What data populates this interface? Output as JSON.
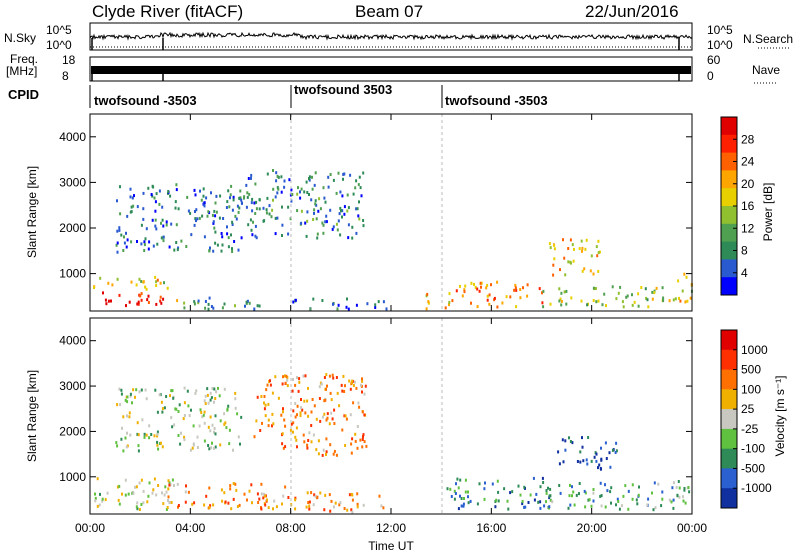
{
  "header": {
    "station": "Clyde River (fitACF)",
    "beam": "Beam 07",
    "date": "22/Jun/2016"
  },
  "meta_panels": {
    "nsky_label": "N.Sky",
    "nsearch_label": "N.Search",
    "freq_label": "Freq.",
    "freq_unit": "[MHz]",
    "nave_label": "Nave",
    "cpid_label": "CPID",
    "nsky_ticks": [
      "10^5",
      "10^0"
    ],
    "freq_ticks": [
      "18",
      "8"
    ],
    "nave_ticks": [
      "60",
      "0"
    ]
  },
  "cpid_segments": [
    {
      "label": "twofsound -3503",
      "start_hour": 0,
      "end_hour": 8
    },
    {
      "label": "twofsound 3503",
      "start_hour": 8,
      "end_hour": 14
    },
    {
      "label": "twofsound -3503",
      "start_hour": 14,
      "end_hour": 24
    }
  ],
  "chart_data": [
    {
      "type": "heatmap",
      "quantity": "Power",
      "ylabel": "Slant Range [km]",
      "xlabel": "",
      "x_ticks": [
        "00:00",
        "04:00",
        "08:00",
        "12:00",
        "16:00",
        "20:00",
        "00:00"
      ],
      "y_ticks": [
        1000,
        2000,
        3000,
        4000
      ],
      "xlim_hours": [
        0,
        24
      ],
      "ylim_km": [
        180,
        4500
      ],
      "colorbar_label": "Power [dB]",
      "colorbar_ticks": [
        4,
        8,
        12,
        16,
        20,
        24,
        28
      ],
      "colorbar_colors": [
        "#0000ff",
        "#2a5ad0",
        "#2e8b57",
        "#4fa050",
        "#90c030",
        "#e8d000",
        "#ffa500",
        "#ff6000",
        "#ff2000",
        "#e00000"
      ],
      "scatter_regions": [
        {
          "t0": 0.1,
          "t1": 2.3,
          "r0": 300,
          "r1": 650,
          "level": 0.92
        },
        {
          "t0": 2.3,
          "t1": 3.5,
          "r0": 320,
          "r1": 600,
          "level": 0.85
        },
        {
          "t0": 0.1,
          "t1": 3.2,
          "r0": 650,
          "r1": 950,
          "level": 0.55
        },
        {
          "t0": 3.2,
          "t1": 7.5,
          "r0": 250,
          "r1": 500,
          "level": 0.25
        },
        {
          "t0": 1.0,
          "t1": 6.0,
          "r0": 1500,
          "r1": 3000,
          "level": 0.2
        },
        {
          "t0": 6.0,
          "t1": 11.0,
          "r0": 1800,
          "r1": 3300,
          "level": 0.25
        },
        {
          "t0": 8.0,
          "t1": 12.0,
          "r0": 250,
          "r1": 500,
          "level": 0.2
        },
        {
          "t0": 13.2,
          "t1": 14.5,
          "r0": 250,
          "r1": 600,
          "level": 0.6
        },
        {
          "t0": 14.5,
          "t1": 18.0,
          "r0": 300,
          "r1": 850,
          "level": 0.7
        },
        {
          "t0": 18.0,
          "t1": 23.5,
          "r0": 300,
          "r1": 750,
          "level": 0.45
        },
        {
          "t0": 18.2,
          "t1": 20.3,
          "r0": 1000,
          "r1": 1800,
          "level": 0.6
        },
        {
          "t0": 23.2,
          "t1": 24.0,
          "r0": 400,
          "r1": 1100,
          "level": 0.55
        }
      ]
    },
    {
      "type": "heatmap",
      "quantity": "Velocity",
      "ylabel": "Slant Range [km]",
      "xlabel": "Time UT",
      "x_ticks": [
        "00:00",
        "04:00",
        "08:00",
        "12:00",
        "16:00",
        "20:00",
        "00:00"
      ],
      "y_ticks": [
        1000,
        2000,
        3000,
        4000
      ],
      "xlim_hours": [
        0,
        24
      ],
      "ylim_km": [
        180,
        4500
      ],
      "colorbar_label": "Velocity [m s⁻¹]",
      "colorbar_ticks": [
        1000,
        500,
        100,
        25,
        -25,
        -100,
        -500,
        -1000
      ],
      "colorbar_colors": [
        "#1030a0",
        "#2a60d0",
        "#2e8b57",
        "#60c040",
        "#c8c8c0",
        "#f0b000",
        "#ff7000",
        "#ff3000",
        "#e00000"
      ],
      "scatter_regions": [
        {
          "t0": 0.1,
          "t1": 3.5,
          "r0": 300,
          "r1": 1000,
          "level": 0.5
        },
        {
          "t0": 1.0,
          "t1": 6.0,
          "r0": 1600,
          "r1": 3000,
          "level": 0.45
        },
        {
          "t0": 6.5,
          "t1": 11.0,
          "r0": 1500,
          "r1": 3300,
          "level": 0.7
        },
        {
          "t0": 3.0,
          "t1": 8.0,
          "r0": 300,
          "r1": 900,
          "level": 0.7
        },
        {
          "t0": 8.0,
          "t1": 12.0,
          "r0": 250,
          "r1": 700,
          "level": 0.65
        },
        {
          "t0": 14.2,
          "t1": 18.5,
          "r0": 300,
          "r1": 1000,
          "level": 0.22
        },
        {
          "t0": 18.5,
          "t1": 21.0,
          "r0": 1200,
          "r1": 1900,
          "level": 0.1
        },
        {
          "t0": 18.0,
          "t1": 23.5,
          "r0": 300,
          "r1": 900,
          "level": 0.3
        },
        {
          "t0": 23.2,
          "t1": 24.0,
          "r0": 350,
          "r1": 1000,
          "level": 0.4
        }
      ]
    }
  ]
}
